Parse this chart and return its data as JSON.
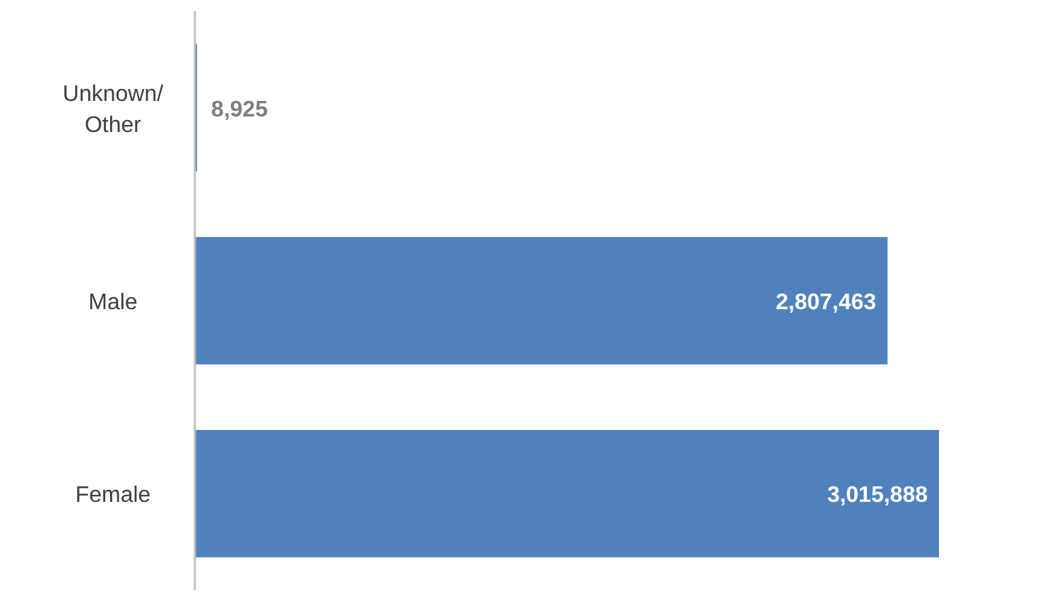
{
  "chart_data": {
    "type": "bar",
    "orientation": "horizontal",
    "categories": [
      "Unknown/ Other",
      "Male",
      "Female"
    ],
    "values": [
      8925,
      2807463,
      3015888
    ],
    "value_labels": [
      "8,925",
      "2,807,463",
      "3,015,888"
    ],
    "color": "#4f81bd",
    "grid": false
  }
}
